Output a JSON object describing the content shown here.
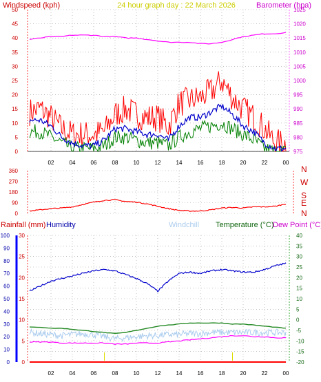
{
  "header": {
    "left_title": "Windspeed (kph)",
    "center_title": "24 hour graph day : 22 March 2026",
    "right_title": "Barometer (hpa)"
  },
  "direction_labels": [
    "N",
    "W",
    "S",
    "E",
    "N"
  ],
  "bottom_labels": {
    "rainfall": "Rainfall (mm)",
    "humidity": "Humidity",
    "windchill": "Windchill",
    "temperature": "Temperature (°C)",
    "dewpoint": "Dew Point (°C)"
  },
  "colors": {
    "wind_gust": "#ff0000",
    "wind_avg": "#0000cc",
    "wind_low": "#008000",
    "barometer": "#ff00ff",
    "direction": "#ff0000",
    "humidity": "#0000cc",
    "windchill": "#aaccee",
    "temperature": "#228822",
    "dewpoint": "#ff00ff",
    "rainfall": "#ff0000",
    "axis_red": "#cc0000",
    "grid": "#999999"
  },
  "x_ticks": [
    "02",
    "04",
    "06",
    "08",
    "10",
    "12",
    "14",
    "16",
    "18",
    "20",
    "22",
    "00"
  ],
  "chart_data": [
    {
      "type": "line",
      "name": "wind",
      "x_ticks": [
        "02",
        "04",
        "06",
        "08",
        "10",
        "12",
        "14",
        "16",
        "18",
        "20",
        "22",
        "00"
      ],
      "y_left_ticks": [
        "0",
        "5",
        "10",
        "15",
        "20",
        "25",
        "30",
        "35",
        "40",
        "45",
        "50"
      ],
      "y_right_ticks": [
        "975",
        "980",
        "985",
        "990",
        "995",
        "1000",
        "1005",
        "1010",
        "1015",
        "1020",
        "1025"
      ],
      "ylim_left": [
        0,
        50
      ],
      "ylim_right": [
        975,
        1025
      ],
      "x": [
        0,
        1,
        2,
        3,
        4,
        5,
        6,
        7,
        8,
        9,
        10,
        11,
        12,
        13,
        14,
        15,
        16,
        17,
        18,
        19,
        20,
        21,
        22,
        23,
        24
      ],
      "series": [
        {
          "values": [
            14,
            15,
            12,
            8,
            6,
            6,
            6,
            7,
            13,
            15,
            13,
            12,
            12,
            9,
            17,
            18,
            19,
            21,
            25,
            19,
            15,
            12,
            8,
            3,
            3
          ]
        },
        {
          "values": [
            11,
            11,
            9,
            5,
            3,
            2,
            2,
            4,
            8,
            8,
            7,
            6,
            6,
            4,
            9,
            12,
            12,
            14,
            16,
            13,
            9,
            7,
            3,
            1,
            1
          ]
        },
        {
          "values": [
            7,
            7,
            5,
            3,
            1,
            1,
            1,
            2,
            5,
            5,
            4,
            3,
            3,
            2,
            5,
            7,
            8,
            9,
            10,
            8,
            6,
            4,
            1,
            0,
            0
          ]
        },
        {
          "values": [
            1014.5,
            1015,
            1015.5,
            1015.5,
            1016,
            1016,
            1016,
            1015.5,
            1015.5,
            1015,
            1015,
            1014.5,
            1014,
            1013.5,
            1013.5,
            1013.5,
            1013,
            1013,
            1013.5,
            1014.5,
            1015.5,
            1016,
            1016.5,
            1016.5,
            1017
          ]
        }
      ]
    },
    {
      "type": "line",
      "name": "wind direction",
      "y_ticks": [
        "0",
        "90",
        "180",
        "270",
        "360"
      ],
      "ylim": [
        0,
        360
      ],
      "x": [
        0,
        1,
        2,
        3,
        4,
        5,
        6,
        7,
        8,
        9,
        10,
        11,
        12,
        13,
        14,
        15,
        16,
        17,
        18,
        19,
        20,
        21,
        22,
        23,
        24
      ],
      "series": [
        {
          "values": [
            20,
            30,
            40,
            45,
            55,
            75,
            95,
            110,
            115,
            100,
            95,
            80,
            60,
            40,
            25,
            20,
            20,
            30,
            45,
            50,
            45,
            55,
            55,
            60,
            80
          ]
        }
      ]
    },
    {
      "type": "line",
      "name": "humidity and temperature",
      "y_left_outer_ticks": [
        "0",
        "10",
        "20",
        "30",
        "40",
        "50",
        "60",
        "70",
        "80",
        "90",
        "100"
      ],
      "y_left_inner_ticks": [
        "0",
        "5",
        "10",
        "15",
        "20",
        "25",
        "30"
      ],
      "y_right_ticks": [
        "-20",
        "-15",
        "-10",
        "-5",
        "0",
        "5",
        "10",
        "15",
        "20",
        "25",
        "30",
        "35",
        "40"
      ],
      "ylim_humidity": [
        0,
        100
      ],
      "ylim_temperature": [
        -20,
        40
      ],
      "ylim_rainfall": [
        0,
        30
      ],
      "x": [
        0,
        1,
        2,
        3,
        4,
        5,
        6,
        7,
        8,
        9,
        10,
        11,
        12,
        13,
        14,
        15,
        16,
        17,
        18,
        19,
        20,
        21,
        22,
        23,
        24
      ],
      "series": [
        {
          "values": [
            56,
            60,
            64,
            66,
            68,
            70,
            72,
            73,
            72,
            69,
            66,
            62,
            56,
            64,
            70,
            71,
            70,
            72,
            73,
            72,
            71,
            71,
            73,
            76,
            78
          ]
        },
        {
          "values": [
            -6,
            -6.5,
            -7,
            -7.5,
            -7,
            -6.5,
            -7,
            -8,
            -9,
            -8.5,
            -8,
            -7.5,
            -7.5,
            -7,
            -7,
            -6.5,
            -6.5,
            -6,
            -6,
            -6,
            -6,
            -6,
            -6,
            -6,
            -6
          ]
        },
        {
          "values": [
            -3.5,
            -3.5,
            -4,
            -4,
            -4.5,
            -5,
            -5.5,
            -6,
            -6.5,
            -6,
            -5,
            -4,
            -3,
            -2.5,
            -2,
            -1.5,
            -1.5,
            -1.5,
            -1.5,
            -2,
            -2,
            -2.5,
            -3,
            -3.5,
            -4
          ]
        },
        {
          "values": [
            -10.5,
            -10.5,
            -10.5,
            -11,
            -11,
            -11,
            -11,
            -11,
            -11.5,
            -11.5,
            -11,
            -11,
            -11,
            -10.5,
            -10,
            -9.5,
            -9,
            -8.5,
            -8,
            -7.5,
            -7.5,
            -8,
            -8,
            -8.5,
            -8.5
          ]
        },
        {
          "values": [
            0,
            0,
            0,
            0,
            0,
            0,
            0,
            0,
            0,
            0,
            0,
            0,
            0,
            0,
            0,
            0,
            0,
            0,
            0,
            0,
            0,
            0,
            0,
            0,
            0
          ]
        }
      ]
    }
  ]
}
